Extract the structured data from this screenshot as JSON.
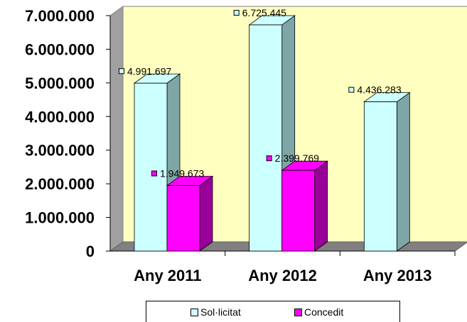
{
  "chart_data": {
    "type": "bar",
    "categories": [
      "Any 2011",
      "Any 2012",
      "Any 2013"
    ],
    "series": [
      {
        "name": "Sol·licitat",
        "values": [
          4991697,
          6725445,
          4436283
        ],
        "labels": [
          "4.991.697",
          "6.725.445",
          "4.436.283"
        ],
        "color": "#ccffff",
        "side_color": "#7fa6a6"
      },
      {
        "name": "Concedit",
        "values": [
          1949673,
          2399769,
          null
        ],
        "labels": [
          "1.949.673",
          "2.399.769",
          ""
        ],
        "color": "#ff00ff",
        "side_color": "#990099"
      }
    ],
    "yticks": [
      "0",
      "1.000.000",
      "2.000.000",
      "3.000.000",
      "4.000.000",
      "5.000.000",
      "6.000.000",
      "7.000.000"
    ],
    "ylim": [
      0,
      7000000
    ],
    "wall_color": "#ffffc0",
    "grid": false,
    "legend_position": "bottom"
  }
}
